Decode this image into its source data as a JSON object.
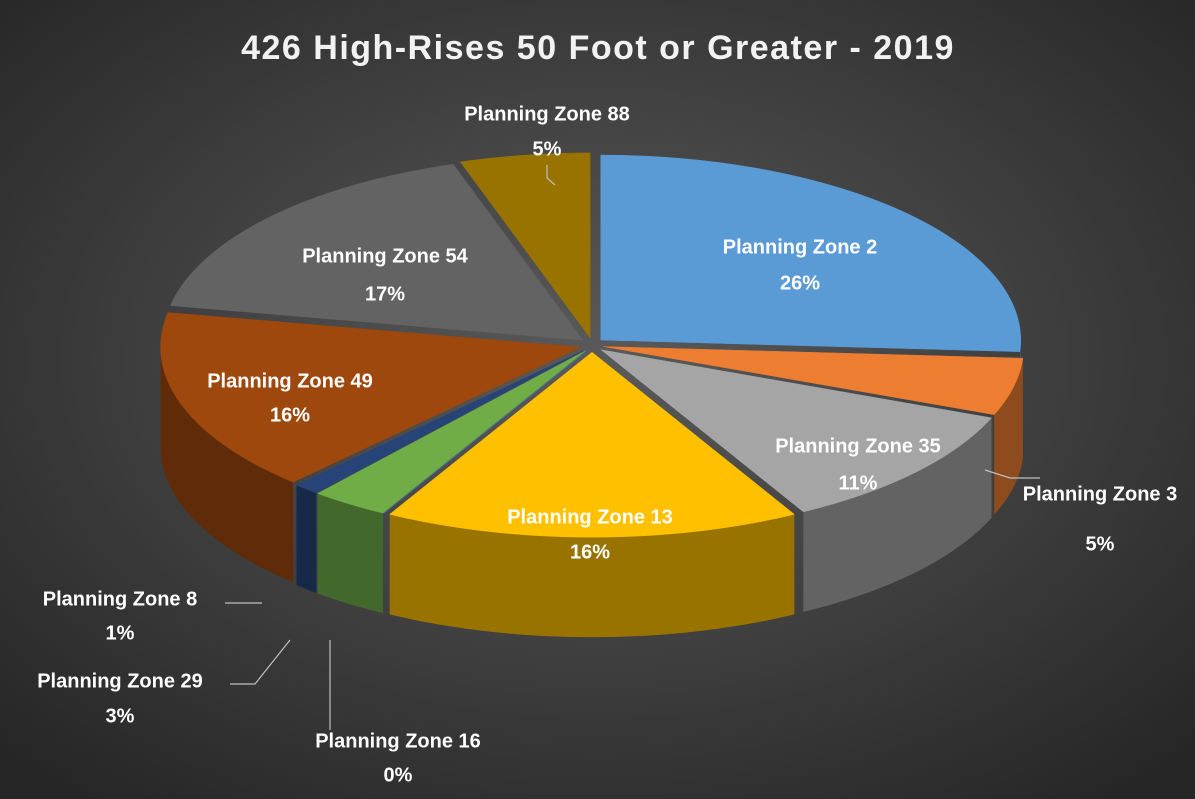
{
  "chart_data": {
    "type": "pie",
    "title": "426 High-Rises 50 Foot or Greater - 2019",
    "categories": [
      "Planning Zone 2",
      "Planning Zone 3",
      "Planning Zone 35",
      "Planning Zone 13",
      "Planning Zone 16",
      "Planning Zone 29",
      "Planning Zone 8",
      "Planning Zone 49",
      "Planning Zone 54",
      "Planning Zone 88"
    ],
    "values": [
      26,
      5,
      11,
      16,
      0,
      3,
      1,
      16,
      17,
      5
    ],
    "value_labels": [
      "26%",
      "5%",
      "11%",
      "16%",
      "0%",
      "3%",
      "1%",
      "16%",
      "17%",
      "5%"
    ],
    "colors": [
      "#5b9bd5",
      "#ed7d31",
      "#a5a5a5",
      "#ffc000",
      "#4472c4",
      "#70ad47",
      "#264478",
      "#9e480e",
      "#636363",
      "#997300"
    ]
  }
}
